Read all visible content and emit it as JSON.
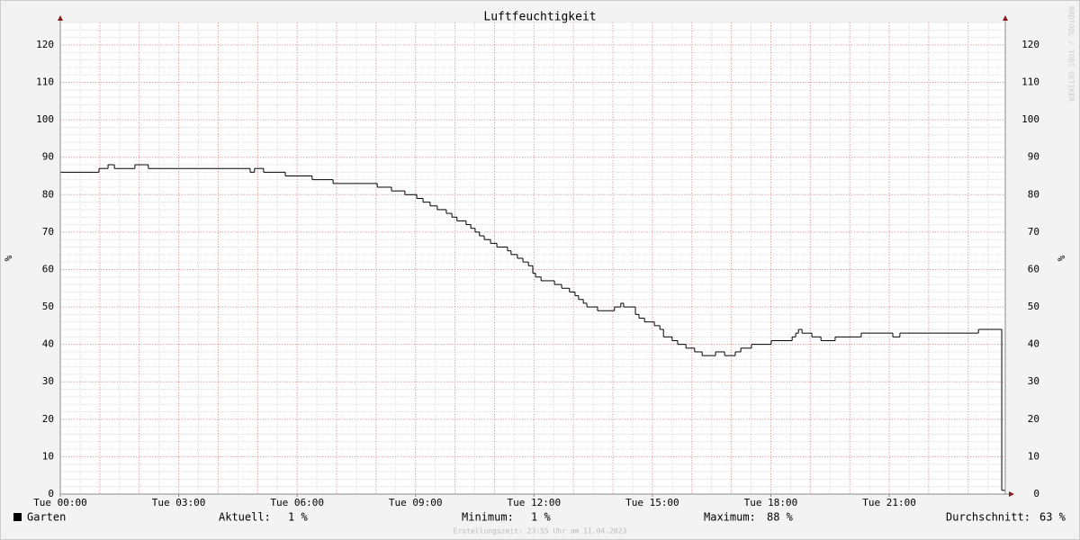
{
  "chart_data": {
    "type": "line",
    "step": true,
    "title": "Luftfeuchtigkeit",
    "y_label": "%",
    "y2_label": "%",
    "watermark": "RRDTOOL / TOBI OETIKER",
    "footer": "Erstellungszeit: 23:55 Uhr am 11.04.2023",
    "xlim": [
      0,
      23.94
    ],
    "ylim": [
      0,
      126
    ],
    "grid": true,
    "xticks": [
      {
        "value": 0,
        "label": "Tue 00:00"
      },
      {
        "value": 3,
        "label": "Tue 03:00"
      },
      {
        "value": 6,
        "label": "Tue 06:00"
      },
      {
        "value": 9,
        "label": "Tue 09:00"
      },
      {
        "value": 12,
        "label": "Tue 12:00"
      },
      {
        "value": 15,
        "label": "Tue 15:00"
      },
      {
        "value": 18,
        "label": "Tue 18:00"
      },
      {
        "value": 21,
        "label": "Tue 21:00"
      }
    ],
    "yticks": [
      0,
      10,
      20,
      30,
      40,
      50,
      60,
      70,
      80,
      90,
      100,
      110,
      120
    ],
    "x": [
      0,
      0.98,
      1.21,
      1.37,
      1.89,
      2.23,
      4.81,
      4.92,
      5.15,
      5.7,
      6.38,
      6.91,
      8.03,
      8.39,
      8.73,
      9.03,
      9.19,
      9.37,
      9.55,
      9.78,
      9.92,
      10.05,
      10.28,
      10.4,
      10.51,
      10.62,
      10.74,
      10.9,
      11.06,
      11.33,
      11.42,
      11.58,
      11.72,
      11.86,
      11.97,
      12.04,
      12.18,
      12.52,
      12.7,
      12.9,
      13.04,
      13.13,
      13.25,
      13.34,
      13.61,
      14.04,
      14.2,
      14.27,
      14.57,
      14.66,
      14.8,
      15.05,
      15.19,
      15.28,
      15.5,
      15.64,
      15.85,
      16.07,
      16.26,
      16.6,
      16.83,
      17.1,
      17.24,
      17.51,
      18.01,
      18.54,
      18.63,
      18.7,
      18.79,
      19.04,
      19.27,
      19.63,
      20.29,
      21.09,
      21.27,
      23.26,
      23.85
    ],
    "series": [
      {
        "name": "Garten",
        "color": "#000000",
        "values": [
          86,
          87,
          88,
          87,
          88,
          87,
          86,
          87,
          86,
          85,
          84,
          83,
          82,
          81,
          80,
          79,
          78,
          77,
          76,
          75,
          74,
          73,
          72,
          71,
          70,
          69,
          68,
          67,
          66,
          65,
          64,
          63,
          62,
          61,
          59,
          58,
          57,
          56,
          55,
          54,
          53,
          52,
          51,
          50,
          49,
          50,
          51,
          50,
          48,
          47,
          46,
          45,
          44,
          42,
          41,
          40,
          39,
          38,
          37,
          38,
          37,
          38,
          39,
          40,
          41,
          42,
          43,
          44,
          43,
          42,
          41,
          42,
          43,
          42,
          43,
          44,
          1
        ]
      }
    ],
    "stats": [
      {
        "label": "Aktuell:",
        "value": "1 %"
      },
      {
        "label": "Minimum:",
        "value": "1 %"
      },
      {
        "label": "Maximum:",
        "value": "88 %"
      },
      {
        "label": "Durchschnitt:",
        "value": "63 %"
      }
    ]
  }
}
